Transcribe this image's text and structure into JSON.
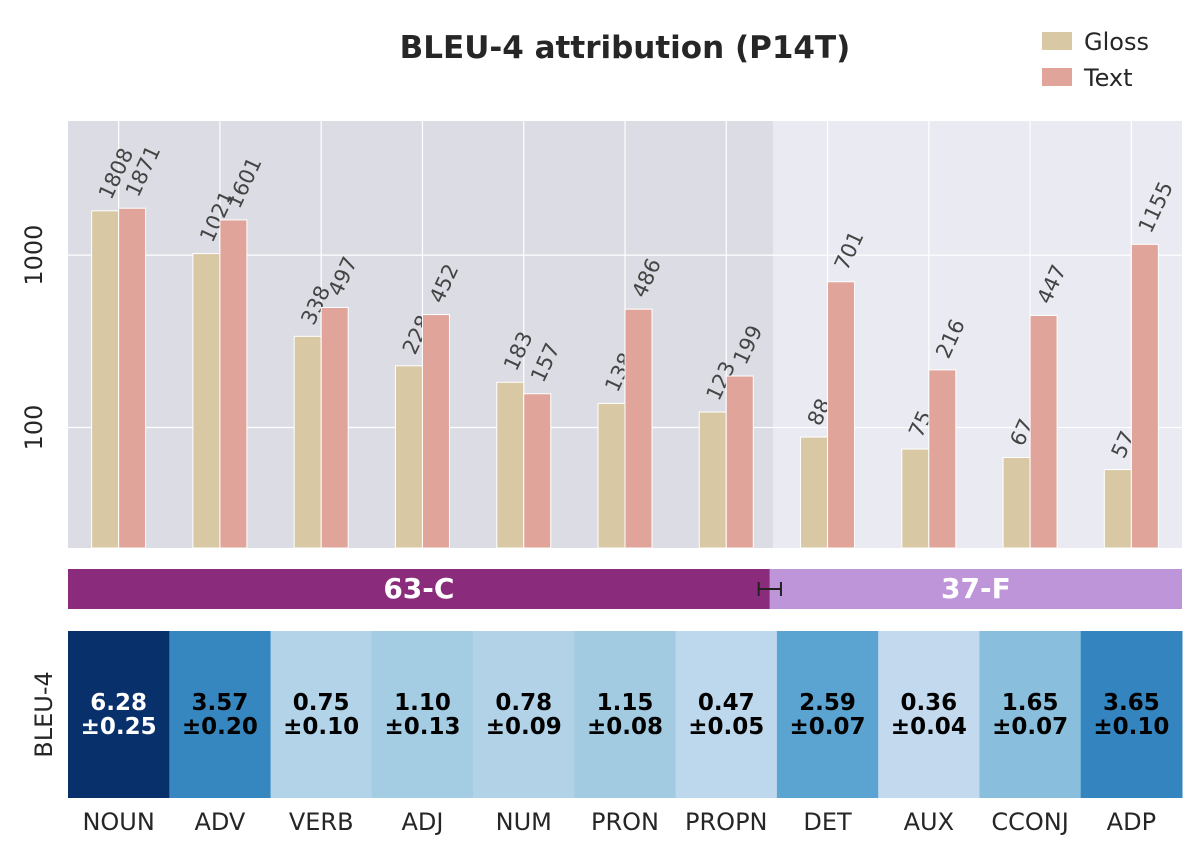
{
  "chart_data": {
    "type": "bar",
    "title": "BLEU-4 attribution (P14T)",
    "yscale": "log",
    "ylim": [
      20,
      6000
    ],
    "yticks": [
      100,
      1000
    ],
    "ytick_labels": [
      "100",
      "1000"
    ],
    "grid": true,
    "legend_position": "top-right",
    "categories": [
      "NOUN",
      "ADV",
      "VERB",
      "ADJ",
      "NUM",
      "PRON",
      "PROPN",
      "DET",
      "AUX",
      "CCONJ",
      "ADP"
    ],
    "series": [
      {
        "name": "Gloss",
        "color": "#d8c8a4",
        "values": [
          1808,
          1021,
          338,
          228,
          183,
          138,
          123,
          88,
          75,
          67,
          57
        ]
      },
      {
        "name": "Text",
        "color": "#e0a49a",
        "values": [
          1871,
          1601,
          497,
          452,
          157,
          486,
          199,
          701,
          216,
          447,
          1155
        ]
      }
    ],
    "value_labels": {
      "Gloss": [
        "1808",
        "1021",
        "338",
        "228",
        "183",
        "138",
        "123",
        "88",
        "75",
        "67",
        "57"
      ],
      "Text": [
        "1871",
        "1601",
        "497",
        "452",
        "157",
        "486",
        "199",
        "701",
        "216",
        "447",
        "1155"
      ]
    },
    "highlight_region": {
      "from_category": "NOUN",
      "to_category": "PROPN",
      "color": "#dcdce4"
    },
    "split_band": {
      "split_fraction": 0.63,
      "error_fraction": 0.01,
      "segments": [
        {
          "label": "63-C",
          "color": "#8b2b7b"
        },
        {
          "label": "37-F",
          "color": "#bf95da"
        }
      ]
    },
    "heatmap": {
      "ylabel": "BLEU-4",
      "cells": [
        {
          "value": "6.28",
          "err": "±0.25",
          "color": "#08306b",
          "text_color": "#ffffff"
        },
        {
          "value": "3.57",
          "err": "±0.20",
          "color": "#3686c0",
          "text_color": "#000000"
        },
        {
          "value": "0.75",
          "err": "±0.10",
          "color": "#b3d3e9",
          "text_color": "#000000"
        },
        {
          "value": "1.10",
          "err": "±0.13",
          "color": "#a4cce3",
          "text_color": "#000000"
        },
        {
          "value": "0.78",
          "err": "±0.09",
          "color": "#b2d2e8",
          "text_color": "#000000"
        },
        {
          "value": "1.15",
          "err": "±0.08",
          "color": "#a2cbe2",
          "text_color": "#000000"
        },
        {
          "value": "0.47",
          "err": "±0.05",
          "color": "#bdd7ec",
          "text_color": "#000000"
        },
        {
          "value": "2.59",
          "err": "±0.07",
          "color": "#5ba3d0",
          "text_color": "#000000"
        },
        {
          "value": "0.36",
          "err": "±0.04",
          "color": "#c2d9ee",
          "text_color": "#000000"
        },
        {
          "value": "1.65",
          "err": "±0.07",
          "color": "#89bedc",
          "text_color": "#000000"
        },
        {
          "value": "3.65",
          "err": "±0.10",
          "color": "#3484bf",
          "text_color": "#000000"
        }
      ]
    }
  }
}
